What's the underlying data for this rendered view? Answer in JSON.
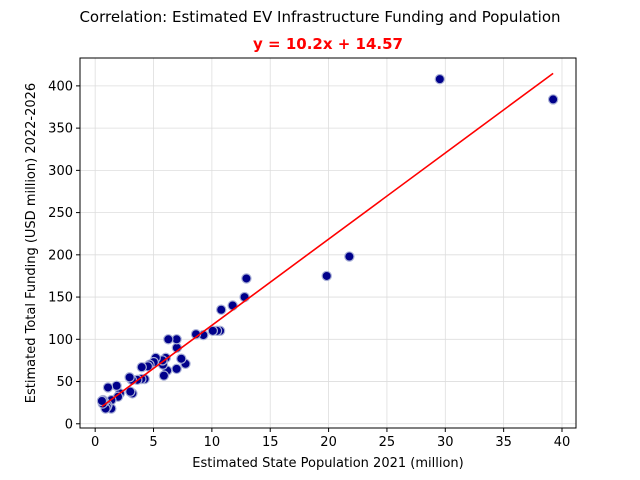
{
  "chart_data": {
    "type": "scatter",
    "title": "Correlation: Estimated EV Infrastructure Funding and Population",
    "subtitle": "y = 10.2x + 14.57",
    "xlabel": "Estimated State Population 2021 (million)",
    "ylabel": "Estimated Total Funding (USD million) 2022-2026",
    "xlim": [
      -1.3,
      41.2
    ],
    "ylim": [
      -5.0,
      433.0
    ],
    "xticks": [
      0,
      5,
      10,
      15,
      20,
      25,
      30,
      35,
      40
    ],
    "yticks": [
      0,
      50,
      100,
      150,
      200,
      250,
      300,
      350,
      400
    ],
    "grid": true,
    "colors": {
      "marker": "#00008b",
      "marker_edge": "#a9b0d6",
      "fit_line": "#ff0000",
      "subtitle": "#ff0000",
      "grid": "#dddddd"
    },
    "fit": {
      "slope": 10.2,
      "intercept": 14.57,
      "x_range": [
        0.58,
        39.24
      ]
    },
    "points": [
      {
        "x": 39.24,
        "y": 384
      },
      {
        "x": 29.53,
        "y": 408
      },
      {
        "x": 21.78,
        "y": 198
      },
      {
        "x": 19.84,
        "y": 175
      },
      {
        "x": 12.96,
        "y": 172
      },
      {
        "x": 12.8,
        "y": 150
      },
      {
        "x": 11.78,
        "y": 140
      },
      {
        "x": 10.8,
        "y": 135
      },
      {
        "x": 10.7,
        "y": 110
      },
      {
        "x": 10.44,
        "y": 110
      },
      {
        "x": 10.08,
        "y": 110
      },
      {
        "x": 9.27,
        "y": 105
      },
      {
        "x": 8.64,
        "y": 106
      },
      {
        "x": 7.74,
        "y": 71
      },
      {
        "x": 7.38,
        "y": 77
      },
      {
        "x": 7.0,
        "y": 90
      },
      {
        "x": 6.98,
        "y": 100
      },
      {
        "x": 6.98,
        "y": 65
      },
      {
        "x": 6.27,
        "y": 100
      },
      {
        "x": 6.17,
        "y": 63
      },
      {
        "x": 6.05,
        "y": 78
      },
      {
        "x": 5.89,
        "y": 57
      },
      {
        "x": 5.81,
        "y": 70
      },
      {
        "x": 5.77,
        "y": 75
      },
      {
        "x": 5.19,
        "y": 78
      },
      {
        "x": 5.02,
        "y": 73
      },
      {
        "x": 4.66,
        "y": 70
      },
      {
        "x": 4.51,
        "y": 68
      },
      {
        "x": 4.24,
        "y": 53
      },
      {
        "x": 3.99,
        "y": 67
      },
      {
        "x": 3.96,
        "y": 53
      },
      {
        "x": 3.61,
        "y": 52
      },
      {
        "x": 3.19,
        "y": 36
      },
      {
        "x": 3.14,
        "y": 52
      },
      {
        "x": 3.01,
        "y": 38
      },
      {
        "x": 2.95,
        "y": 55
      },
      {
        "x": 2.12,
        "y": 36
      },
      {
        "x": 1.96,
        "y": 32
      },
      {
        "x": 1.84,
        "y": 45
      },
      {
        "x": 1.39,
        "y": 28
      },
      {
        "x": 1.38,
        "y": 18
      },
      {
        "x": 1.1,
        "y": 43
      },
      {
        "x": 1.06,
        "y": 22
      },
      {
        "x": 1.0,
        "y": 20
      },
      {
        "x": 0.89,
        "y": 18
      },
      {
        "x": 0.79,
        "y": 26
      },
      {
        "x": 0.67,
        "y": 28
      },
      {
        "x": 0.65,
        "y": 24
      },
      {
        "x": 0.58,
        "y": 27
      }
    ]
  }
}
